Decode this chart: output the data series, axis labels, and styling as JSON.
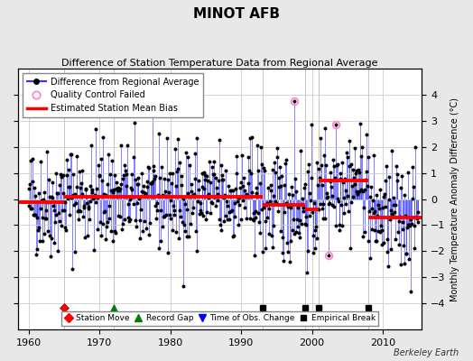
{
  "title": "MINOT AFB",
  "subtitle": "Difference of Station Temperature Data from Regional Average",
  "ylabel": "Monthly Temperature Anomaly Difference (°C)",
  "ylim": [
    -5,
    5
  ],
  "xlim": [
    1958.5,
    2015.5
  ],
  "yticks": [
    -4,
    -3,
    -2,
    -1,
    0,
    1,
    2,
    3,
    4
  ],
  "xticks": [
    1960,
    1970,
    1980,
    1990,
    2000,
    2010
  ],
  "bg_color": "#e8e8e8",
  "plot_bg_color": "#ffffff",
  "line_color": "#3333ff",
  "dot_color": "#000000",
  "bias_color": "#ff0000",
  "qc_color": "#ff88cc",
  "grid_color": "#cccccc",
  "watermark": "Berkeley Earth",
  "station_move": [
    1965.0
  ],
  "record_gap": [
    1972.0
  ],
  "time_obs_change": [],
  "empirical_break": [
    1993.0,
    1999.0,
    2001.0,
    2008.0
  ],
  "bias_segments": [
    {
      "x": [
        1958.5,
        1965.0
      ],
      "y": [
        -0.12,
        -0.12
      ]
    },
    {
      "x": [
        1965.0,
        1993.0
      ],
      "y": [
        0.08,
        0.08
      ]
    },
    {
      "x": [
        1993.0,
        1999.0
      ],
      "y": [
        -0.22,
        -0.22
      ]
    },
    {
      "x": [
        1999.0,
        2001.0
      ],
      "y": [
        -0.38,
        -0.38
      ]
    },
    {
      "x": [
        2001.0,
        2008.0
      ],
      "y": [
        0.72,
        0.72
      ]
    },
    {
      "x": [
        2008.0,
        2015.5
      ],
      "y": [
        -0.72,
        -0.72
      ]
    }
  ],
  "seed": 42,
  "n_months": 660,
  "start_year": 1960.0,
  "end_year": 2015.0,
  "qc_indices": [
    450,
    508,
    519
  ],
  "qc_values": [
    3.75,
    -2.15,
    2.85
  ],
  "marker_y": -4.15,
  "legend_fontsize": 7.0,
  "title_fontsize": 11,
  "subtitle_fontsize": 8,
  "ylabel_fontsize": 7,
  "tick_fontsize": 8,
  "watermark_fontsize": 7
}
